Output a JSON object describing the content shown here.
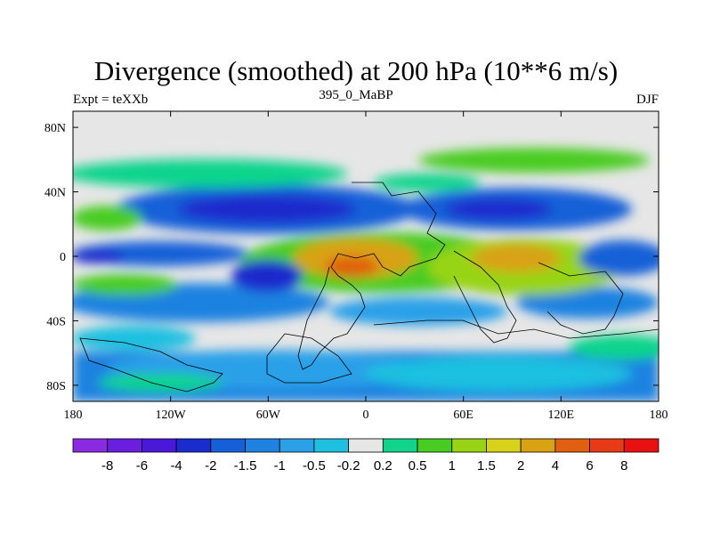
{
  "chart_data": {
    "type": "heatmap",
    "title": "Divergence (smoothed) at 200 hPa (10**6 m/s)",
    "subtitle": "395_0_MaBP",
    "left_label": "Expt = teXXb",
    "right_label": "DJF",
    "xlim": [
      -180,
      180
    ],
    "ylim": [
      -90,
      90
    ],
    "x_ticks": [
      {
        "value": -180,
        "label": "180"
      },
      {
        "value": -120,
        "label": "120W"
      },
      {
        "value": -60,
        "label": "60W"
      },
      {
        "value": 0,
        "label": "0"
      },
      {
        "value": 60,
        "label": "60E"
      },
      {
        "value": 120,
        "label": "120E"
      },
      {
        "value": 180,
        "label": "180"
      }
    ],
    "y_ticks": [
      {
        "value": 80,
        "label": "80N"
      },
      {
        "value": 40,
        "label": "40N"
      },
      {
        "value": 0,
        "label": "0"
      },
      {
        "value": -40,
        "label": "40S"
      },
      {
        "value": -80,
        "label": "80S"
      }
    ],
    "colorbar": {
      "levels": [
        "-8",
        "-6",
        "-4",
        "-2",
        "-1.5",
        "-1",
        "-0.5",
        "-0.2",
        "0.2",
        "0.5",
        "1",
        "1.5",
        "2",
        "4",
        "6",
        "8"
      ],
      "colors": [
        "#8a2be2",
        "#6a1fe0",
        "#4a18d8",
        "#1a2ccc",
        "#1560d8",
        "#1f82e0",
        "#2aa0e8",
        "#1ec0e0",
        "#e6e6e6",
        "#10d48c",
        "#48cc22",
        "#98d414",
        "#d8d21a",
        "#d8a212",
        "#e06010",
        "#e83a14",
        "#e81010"
      ]
    },
    "field_features": [
      {
        "name": "tropical divergence band",
        "value": 1.5,
        "lon": [
          -60,
          110
        ],
        "lat": [
          -25,
          15
        ]
      },
      {
        "name": "east pacific convergence",
        "value": -2,
        "lon": [
          -180,
          -100
        ],
        "lat": [
          -10,
          10
        ]
      },
      {
        "name": "north pacific convergence",
        "value": -4,
        "lon": [
          -170,
          -40
        ],
        "lat": [
          25,
          55
        ]
      },
      {
        "name": "east asia jet convergence",
        "value": -4,
        "lon": [
          90,
          150
        ],
        "lat": [
          30,
          50
        ]
      },
      {
        "name": "southern midlatitude band",
        "value": -1,
        "lon": [
          -180,
          180
        ],
        "lat": [
          -70,
          -40
        ]
      },
      {
        "name": "northern polar region",
        "value": 0,
        "lon": [
          -180,
          180
        ],
        "lat": [
          65,
          90
        ]
      }
    ]
  }
}
